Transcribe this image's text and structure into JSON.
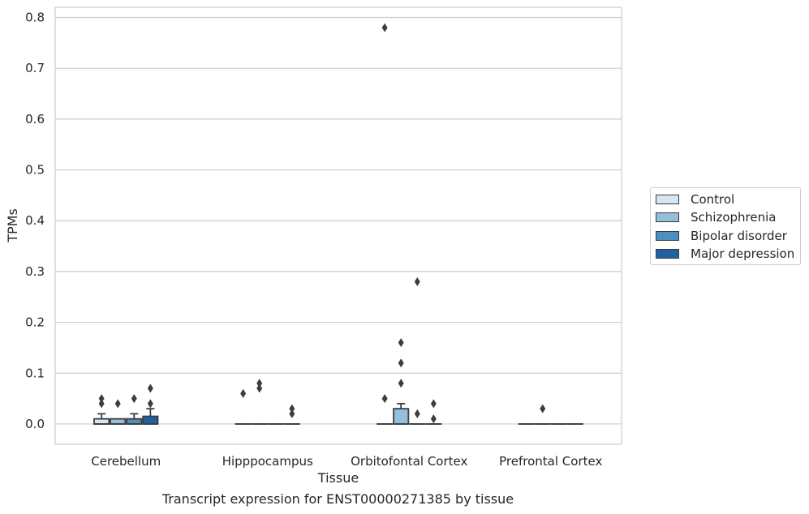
{
  "caption": "Transcript expression for ENST00000271385 by tissue",
  "colors": {
    "Control": "#d6e5f2",
    "Schizophrenia": "#93bfdb",
    "Bipolar disorder": "#4d8fc0",
    "Major depression": "#2060a3",
    "box_edge": "#3d3d3d",
    "grid": "#cccccc"
  },
  "chart_data": {
    "type": "box",
    "xlabel": "Tissue",
    "ylabel": "TPMs",
    "ylim": [
      -0.04,
      0.82
    ],
    "yticks": [
      "0.0",
      "0.1",
      "0.2",
      "0.3",
      "0.4",
      "0.5",
      "0.6",
      "0.7",
      "0.8"
    ],
    "categories": [
      "Cerebellum",
      "Hipppocampus",
      "Orbitofontal Cortex",
      "Prefrontal Cortex"
    ],
    "grid": true,
    "legend_position": "right",
    "series": [
      {
        "name": "Control",
        "boxes": [
          {
            "q1": 0.0,
            "median": 0.0,
            "q3": 0.01,
            "whisker_low": 0.0,
            "whisker_high": 0.02,
            "outliers": [
              0.04,
              0.05
            ]
          },
          {
            "q1": 0.0,
            "median": 0.0,
            "q3": 0.0,
            "whisker_low": 0.0,
            "whisker_high": 0.0,
            "outliers": [
              0.06
            ]
          },
          {
            "q1": 0.0,
            "median": 0.0,
            "q3": 0.0,
            "whisker_low": 0.0,
            "whisker_high": 0.0,
            "outliers": [
              0.05,
              0.78
            ]
          },
          {
            "q1": 0.0,
            "median": 0.0,
            "q3": 0.0,
            "whisker_low": 0.0,
            "whisker_high": 0.0,
            "outliers": []
          }
        ]
      },
      {
        "name": "Schizophrenia",
        "boxes": [
          {
            "q1": 0.0,
            "median": 0.0,
            "q3": 0.01,
            "whisker_low": 0.0,
            "whisker_high": 0.01,
            "outliers": [
              0.04
            ]
          },
          {
            "q1": 0.0,
            "median": 0.0,
            "q3": 0.0,
            "whisker_low": 0.0,
            "whisker_high": 0.0,
            "outliers": [
              0.07,
              0.08
            ]
          },
          {
            "q1": 0.0,
            "median": 0.0,
            "q3": 0.03,
            "whisker_low": 0.0,
            "whisker_high": 0.04,
            "outliers": [
              0.08,
              0.12,
              0.16
            ]
          },
          {
            "q1": 0.0,
            "median": 0.0,
            "q3": 0.0,
            "whisker_low": 0.0,
            "whisker_high": 0.0,
            "outliers": [
              0.03
            ]
          }
        ]
      },
      {
        "name": "Bipolar disorder",
        "boxes": [
          {
            "q1": 0.0,
            "median": 0.0,
            "q3": 0.01,
            "whisker_low": 0.0,
            "whisker_high": 0.02,
            "outliers": [
              0.05
            ]
          },
          {
            "q1": 0.0,
            "median": 0.0,
            "q3": 0.0,
            "whisker_low": 0.0,
            "whisker_high": 0.0,
            "outliers": []
          },
          {
            "q1": 0.0,
            "median": 0.0,
            "q3": 0.0,
            "whisker_low": 0.0,
            "whisker_high": 0.0,
            "outliers": [
              0.02,
              0.28
            ]
          },
          {
            "q1": 0.0,
            "median": 0.0,
            "q3": 0.0,
            "whisker_low": 0.0,
            "whisker_high": 0.0,
            "outliers": []
          }
        ]
      },
      {
        "name": "Major depression",
        "boxes": [
          {
            "q1": 0.0,
            "median": 0.0,
            "q3": 0.015,
            "whisker_low": 0.0,
            "whisker_high": 0.03,
            "outliers": [
              0.04,
              0.07
            ]
          },
          {
            "q1": 0.0,
            "median": 0.0,
            "q3": 0.0,
            "whisker_low": 0.0,
            "whisker_high": 0.0,
            "outliers": [
              0.02,
              0.03
            ]
          },
          {
            "q1": 0.0,
            "median": 0.0,
            "q3": 0.0,
            "whisker_low": 0.0,
            "whisker_high": 0.0,
            "outliers": [
              0.01,
              0.04
            ]
          },
          {
            "q1": 0.0,
            "median": 0.0,
            "q3": 0.0,
            "whisker_low": 0.0,
            "whisker_high": 0.0,
            "outliers": []
          }
        ]
      }
    ]
  }
}
